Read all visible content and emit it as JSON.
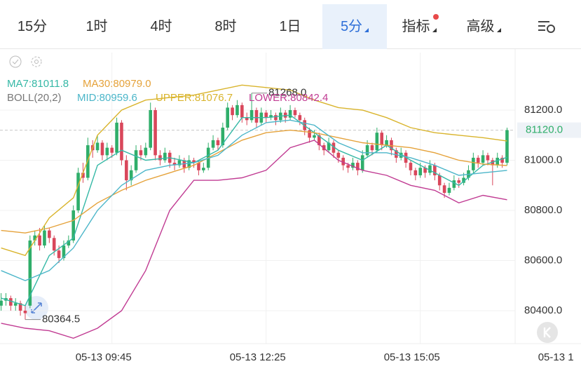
{
  "tabs": [
    "15分",
    "1时",
    "4时",
    "8时",
    "1日",
    "5分",
    "指标",
    "高级"
  ],
  "active_tab": 5,
  "chart_data": {
    "type": "candlestick",
    "indicator_name": "BOLL(20,2)",
    "xlim": [
      -0.23,
      120.35
    ],
    "xticks": [
      {
        "value": 23,
        "label": "05-13 09:45"
      },
      {
        "value": 55,
        "label": "05-13 12:25"
      },
      {
        "value": 87,
        "label": "05-13 15:05"
      },
      {
        "value": 119,
        "label": "05-13 1"
      }
    ],
    "ylim": [
      80268.5,
      81429.4
    ],
    "yticks": [
      {
        "value": 81200,
        "label": "81200.0"
      },
      {
        "value": 81000,
        "label": "81000.0"
      },
      {
        "value": 80800,
        "label": "80800.0"
      },
      {
        "value": 80600,
        "label": "80600.0"
      },
      {
        "value": 80400,
        "label": "80400.0"
      }
    ],
    "grid": true,
    "up_color": "#2fae6a",
    "down_color": "#d9475b",
    "candles": [
      [
        80420,
        80470,
        80400,
        80440
      ],
      [
        80440,
        80470,
        80420,
        80450
      ],
      [
        80450,
        80460,
        80400,
        80420
      ],
      [
        80420,
        80450,
        80400,
        80430
      ],
      [
        80430,
        80440,
        80380,
        80400
      ],
      [
        80400,
        80420,
        80364.5,
        80390
      ],
      [
        80420,
        80700,
        80410,
        80680
      ],
      [
        80680,
        80720,
        80660,
        80700
      ],
      [
        80700,
        80730,
        80640,
        80660
      ],
      [
        80660,
        80740,
        80650,
        80720
      ],
      [
        80720,
        80730,
        80670,
        80690
      ],
      [
        80690,
        80700,
        80620,
        80640
      ],
      [
        80640,
        80660,
        80590,
        80610
      ],
      [
        80610,
        80680,
        80600,
        80660
      ],
      [
        80660,
        80700,
        80650,
        80680
      ],
      [
        80680,
        80820,
        80670,
        80800
      ],
      [
        80800,
        80970,
        80790,
        80950
      ],
      [
        80950,
        80990,
        80910,
        80930
      ],
      [
        80930,
        81090,
        80920,
        81060
      ],
      [
        81060,
        81080,
        81010,
        81040
      ],
      [
        81040,
        81100,
        81030,
        81070
      ],
      [
        81070,
        81080,
        81000,
        81020
      ],
      [
        81020,
        81070,
        81000,
        81050
      ],
      [
        81050,
        81060,
        81010,
        81030
      ],
      [
        81030,
        81170,
        81020,
        81150
      ],
      [
        81150,
        81160,
        80980,
        81000
      ],
      [
        81000,
        81020,
        80880,
        80920
      ],
      [
        80920,
        80980,
        80900,
        80960
      ],
      [
        80960,
        81060,
        80950,
        81040
      ],
      [
        81040,
        81060,
        81000,
        81020
      ],
      [
        81020,
        81070,
        81010,
        81050
      ],
      [
        81050,
        81230,
        81040,
        81200
      ],
      [
        81200,
        81210,
        81000,
        81020
      ],
      [
        81020,
        81040,
        80980,
        81000
      ],
      [
        81000,
        81050,
        80990,
        81030
      ],
      [
        81030,
        81040,
        80970,
        80990
      ],
      [
        80990,
        81010,
        80960,
        80980
      ],
      [
        80980,
        81020,
        80970,
        81000
      ],
      [
        81000,
        81010,
        80950,
        80970
      ],
      [
        80970,
        81020,
        80960,
        81000
      ],
      [
        81000,
        81010,
        80970,
        80990
      ],
      [
        80990,
        81000,
        80940,
        80960
      ],
      [
        80960,
        80990,
        80950,
        80970
      ],
      [
        80970,
        81070,
        80960,
        81050
      ],
      [
        81050,
        81100,
        81040,
        81080
      ],
      [
        81080,
        81090,
        81040,
        81060
      ],
      [
        81060,
        81150,
        81050,
        81130
      ],
      [
        81130,
        81230,
        81120,
        81210
      ],
      [
        81210,
        81220,
        81160,
        81180
      ],
      [
        81180,
        81240,
        81170,
        81220
      ],
      [
        81220,
        81230,
        81150,
        81170
      ],
      [
        81170,
        81190,
        81140,
        81160
      ],
      [
        81160,
        81268,
        81150,
        81200
      ],
      [
        81200,
        81210,
        81130,
        81150
      ],
      [
        81150,
        81210,
        81140,
        81190
      ],
      [
        81190,
        81200,
        81150,
        81170
      ],
      [
        81170,
        81200,
        81160,
        81180
      ],
      [
        81180,
        81190,
        81140,
        81160
      ],
      [
        81160,
        81210,
        81150,
        81190
      ],
      [
        81190,
        81200,
        81150,
        81170
      ],
      [
        81170,
        81220,
        81160,
        81200
      ],
      [
        81200,
        81210,
        81170,
        81180
      ],
      [
        81180,
        81190,
        81140,
        81160
      ],
      [
        81160,
        81170,
        81100,
        81120
      ],
      [
        81120,
        81130,
        81070,
        81090
      ],
      [
        81090,
        81120,
        81080,
        81100
      ],
      [
        81100,
        81110,
        81040,
        81060
      ],
      [
        81060,
        81070,
        81020,
        81040
      ],
      [
        81040,
        81090,
        81030,
        81070
      ],
      [
        81070,
        81080,
        81010,
        81030
      ],
      [
        81030,
        81040,
        80990,
        81010
      ],
      [
        81010,
        81020,
        80960,
        80980
      ],
      [
        80980,
        80990,
        80950,
        80970
      ],
      [
        80970,
        81010,
        80960,
        80990
      ],
      [
        80990,
        81000,
        80940,
        80960
      ],
      [
        80960,
        81040,
        80950,
        81020
      ],
      [
        81020,
        81080,
        81010,
        81060
      ],
      [
        81060,
        81070,
        81020,
        81040
      ],
      [
        81040,
        81130,
        81030,
        81110
      ],
      [
        81110,
        81120,
        81040,
        81060
      ],
      [
        81060,
        81100,
        81050,
        81080
      ],
      [
        81080,
        81090,
        81020,
        81040
      ],
      [
        81040,
        81050,
        80990,
        81010
      ],
      [
        81010,
        81050,
        81000,
        81030
      ],
      [
        81030,
        81040,
        80970,
        80990
      ],
      [
        80990,
        81000,
        80940,
        80960
      ],
      [
        80960,
        80970,
        80920,
        80940
      ],
      [
        80940,
        80990,
        80930,
        80970
      ],
      [
        80970,
        80980,
        80930,
        80950
      ],
      [
        80950,
        81000,
        80940,
        80980
      ],
      [
        80980,
        80990,
        80920,
        80940
      ],
      [
        80940,
        80950,
        80880,
        80900
      ],
      [
        80900,
        80910,
        80850,
        80870
      ],
      [
        80870,
        80910,
        80860,
        80890
      ],
      [
        80890,
        80940,
        80880,
        80920
      ],
      [
        80920,
        80930,
        80890,
        80910
      ],
      [
        80910,
        80950,
        80900,
        80930
      ],
      [
        80930,
        80980,
        80920,
        80960
      ],
      [
        80960,
        81030,
        80950,
        81010
      ],
      [
        81010,
        81020,
        80970,
        80990
      ],
      [
        80990,
        81040,
        80980,
        81020
      ],
      [
        81020,
        81030,
        80980,
        81000
      ],
      [
        81000,
        81010,
        80900,
        80980
      ],
      [
        80980,
        81030,
        80970,
        81010
      ],
      [
        81010,
        81020,
        80970,
        80990
      ],
      [
        80990,
        81130,
        80980,
        81120
      ]
    ],
    "line_x": [
      0,
      5,
      10,
      15,
      20,
      25,
      30,
      35,
      40,
      45,
      50,
      55,
      60,
      65,
      70,
      75,
      80,
      85,
      90,
      95,
      100,
      105
    ],
    "series": [
      {
        "name": "MA7:81011.8",
        "color": "#35b8a6",
        "values": [
          80450,
          80420,
          80620,
          80690,
          80980,
          81040,
          81000,
          81010,
          80990,
          81040,
          81170,
          81170,
          81180,
          81110,
          81040,
          81000,
          81060,
          81000,
          80950,
          80900,
          80980,
          81011.8
        ]
      },
      {
        "name": "MA30:80979.0",
        "color": "#e5a23a",
        "values": [
          80720,
          80710,
          80730,
          80760,
          80830,
          80880,
          80920,
          80950,
          80980,
          81030,
          81080,
          81110,
          81120,
          81110,
          81090,
          81070,
          81060,
          81050,
          81030,
          81000,
          80985,
          80979
        ]
      },
      {
        "name": "MID:80959.6",
        "color": "#4cb6c9",
        "values": [
          80560,
          80520,
          80560,
          80650,
          80800,
          80900,
          80960,
          80980,
          80990,
          81020,
          81100,
          81150,
          81160,
          81140,
          81070,
          81030,
          81030,
          81010,
          80980,
          80940,
          80950,
          80959.6
        ]
      },
      {
        "name": "UPPER:81076.7",
        "color": "#d9b42c",
        "values": [
          80650,
          80620,
          80770,
          80850,
          81100,
          81200,
          81240,
          81250,
          81260,
          81280,
          81300,
          81290,
          81280,
          81240,
          81210,
          81200,
          81170,
          81130,
          81110,
          81100,
          81090,
          81076.7
        ]
      },
      {
        "name": "LOWER:80842.4",
        "color": "#c13c93",
        "values": [
          80350,
          80330,
          80320,
          80290,
          80330,
          80400,
          80560,
          80800,
          80920,
          80920,
          80930,
          80960,
          81050,
          81080,
          81000,
          80960,
          80940,
          80900,
          80880,
          80830,
          80860,
          80842.4
        ]
      }
    ],
    "annotations": [
      {
        "value": 81268,
        "label": "81268.0",
        "index": 52
      },
      {
        "value": 80364.5,
        "label": "80364.5",
        "index": 5
      }
    ],
    "last_price": {
      "value": 81120,
      "label": "81120.0"
    }
  }
}
